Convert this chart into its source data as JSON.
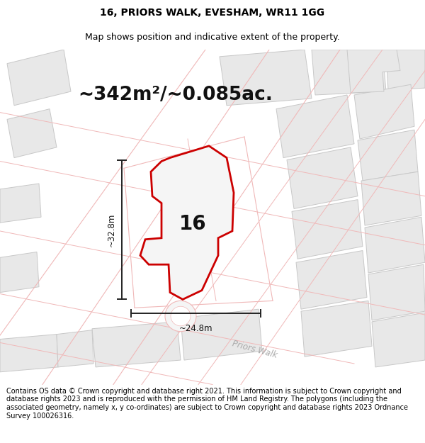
{
  "title": "16, PRIORS WALK, EVESHAM, WR11 1GG",
  "subtitle": "Map shows position and indicative extent of the property.",
  "area_text": "~342m²/~0.085ac.",
  "dim_width": "~24.8m",
  "dim_height": "~32.8m",
  "label_number": "16",
  "street_label": "Priors Walk",
  "footer_text": "Contains OS data © Crown copyright and database right 2021. This information is subject to Crown copyright and database rights 2023 and is reproduced with the permission of HM Land Registry. The polygons (including the associated geometry, namely x, y co-ordinates) are subject to Crown copyright and database rights 2023 Ordnance Survey 100026316.",
  "map_bg": "#ffffff",
  "outline_color": "#f0b8b8",
  "highlight_color": "#cc0000",
  "building_fill": "#e8e8e8",
  "building_outline": "#c8c8c8",
  "white": "#ffffff",
  "title_fontsize": 10,
  "subtitle_fontsize": 9,
  "area_fontsize": 19,
  "label_fontsize": 20,
  "footer_fontsize": 7,
  "dim_fontsize": 8.5,
  "street_fontsize": 8.5
}
